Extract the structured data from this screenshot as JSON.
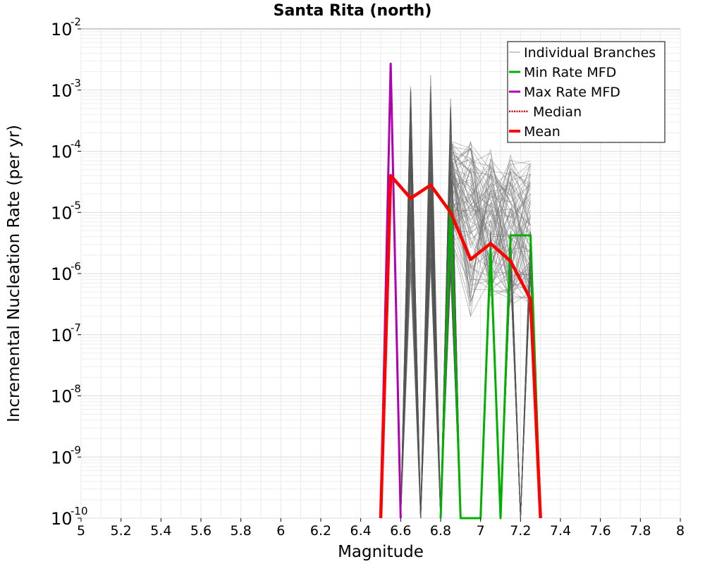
{
  "chart_data": {
    "type": "line",
    "title": "Santa Rita (north)",
    "xlabel": "Magnitude",
    "ylabel": "Incremental Nucleation Rate (per yr)",
    "xlim": [
      5,
      8
    ],
    "ylim": [
      1e-10,
      0.01
    ],
    "y_scale": "log",
    "grid": true,
    "legend_position": "top-right",
    "x_ticks": [
      "5",
      "5.2",
      "5.4",
      "5.6",
      "5.8",
      "6",
      "6.2",
      "6.4",
      "6.6",
      "6.8",
      "7",
      "7.2",
      "7.4",
      "7.6",
      "7.8",
      "8"
    ],
    "y_ticks": [
      {
        "base": "10",
        "exp": "-10"
      },
      {
        "base": "10",
        "exp": "-9"
      },
      {
        "base": "10",
        "exp": "-8"
      },
      {
        "base": "10",
        "exp": "-7"
      },
      {
        "base": "10",
        "exp": "-6"
      },
      {
        "base": "10",
        "exp": "-5"
      },
      {
        "base": "10",
        "exp": "-4"
      },
      {
        "base": "10",
        "exp": "-3"
      },
      {
        "base": "10",
        "exp": "-2"
      }
    ],
    "legend": [
      {
        "label": "Individual Branches",
        "color": "#999999",
        "style": "thin"
      },
      {
        "label": "Min Rate MFD",
        "color": "#00b000",
        "style": "solid"
      },
      {
        "label": "Max Rate MFD",
        "color": "#b000b0",
        "style": "solid"
      },
      {
        "label": "Median",
        "color": "#e00000",
        "style": "dotted"
      },
      {
        "label": "Mean",
        "color": "#ff0000",
        "style": "thick"
      }
    ],
    "series": [
      {
        "name": "Mean",
        "color": "#ff0000",
        "x": [
          6.5,
          6.55,
          6.65,
          6.75,
          6.85,
          6.95,
          7.05,
          7.15,
          7.25,
          7.3
        ],
        "y": [
          1e-10,
          4e-05,
          1.7e-05,
          2.8e-05,
          1e-05,
          1.7e-06,
          3.1e-06,
          1.6e-06,
          3.8e-07,
          1e-10
        ]
      },
      {
        "name": "Median",
        "color": "#e00000",
        "x": [
          6.5,
          6.55,
          6.65,
          6.75,
          6.85,
          6.95,
          7.05,
          7.15,
          7.25,
          7.3
        ],
        "y": [
          1e-10,
          4e-05,
          1.7e-05,
          2.8e-05,
          1e-05,
          1.7e-06,
          3.1e-06,
          1.6e-06,
          3.8e-07,
          1e-10
        ]
      },
      {
        "name": "Min Rate MFD",
        "color": "#00b000",
        "x": [
          6.8,
          6.85,
          6.9,
          7.0,
          7.05,
          7.1,
          7.15,
          7.25,
          7.3
        ],
        "y": [
          1e-10,
          1.2e-05,
          1e-10,
          1e-10,
          2.5e-06,
          1e-10,
          4.2e-06,
          4.2e-06,
          1e-10
        ]
      },
      {
        "name": "Max Rate MFD",
        "color": "#b000b0",
        "x": [
          6.5,
          6.55,
          6.6
        ],
        "y": [
          1e-10,
          0.0027,
          1e-10
        ]
      }
    ],
    "individual_branches": {
      "color": "#555555",
      "spikes": [
        {
          "x0": 6.6,
          "x": 6.65,
          "x1": 6.7,
          "y_range": [
            1e-09,
            0.0018
          ]
        },
        {
          "x0": 6.7,
          "x": 6.75,
          "x1": 6.8,
          "y_range": [
            1e-09,
            0.0018
          ]
        },
        {
          "x0": 6.8,
          "x": 6.85,
          "x1": 6.9,
          "y_range": [
            1e-09,
            0.0009
          ]
        },
        {
          "x0": 7.0,
          "x": 7.05,
          "x1": 7.1,
          "y_range": [
            1e-09,
            5e-06
          ]
        },
        {
          "x0": 7.1,
          "x": 7.15,
          "x1": 7.2,
          "y_range": [
            1e-09,
            5e-06
          ]
        },
        {
          "x0": 7.2,
          "x": 7.25,
          "x1": 7.3,
          "y_range": [
            1e-09,
            5e-06
          ]
        }
      ],
      "fan_levels": {
        "x": [
          6.85,
          6.95,
          7.05,
          7.15,
          7.25
        ],
        "y_range_at_6_85": [
          3e-06,
          0.00018
        ],
        "y_range_at_6_95": [
          2e-07,
          0.00015
        ],
        "y_range_at_7_05": [
          4e-07,
          0.00012
        ],
        "y_range_at_7_15": [
          3e-07,
          9e-05
        ],
        "y_range_at_7_25": [
          2.5e-07,
          7e-05
        ]
      }
    }
  }
}
